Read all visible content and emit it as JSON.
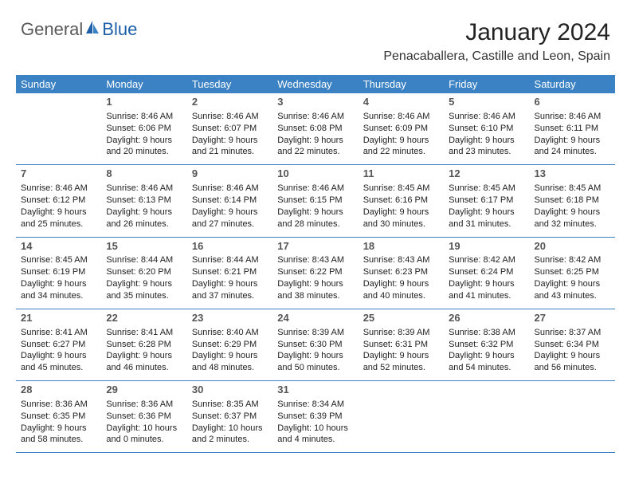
{
  "logo": {
    "general": "General",
    "blue": "Blue"
  },
  "title": "January 2024",
  "location": "Penacaballera, Castille and Leon, Spain",
  "colors": {
    "header_bg": "#3b82c4",
    "header_fg": "#ffffff",
    "row_border": "#3b82c4",
    "daynum": "#555555",
    "text": "#222222",
    "logo_gray": "#5a5a5a",
    "logo_blue": "#1e5fa8"
  },
  "weekdays": [
    "Sunday",
    "Monday",
    "Tuesday",
    "Wednesday",
    "Thursday",
    "Friday",
    "Saturday"
  ],
  "weeks": [
    [
      {
        "day": "",
        "lines": []
      },
      {
        "day": "1",
        "lines": [
          "Sunrise: 8:46 AM",
          "Sunset: 6:06 PM",
          "Daylight: 9 hours and 20 minutes."
        ]
      },
      {
        "day": "2",
        "lines": [
          "Sunrise: 8:46 AM",
          "Sunset: 6:07 PM",
          "Daylight: 9 hours and 21 minutes."
        ]
      },
      {
        "day": "3",
        "lines": [
          "Sunrise: 8:46 AM",
          "Sunset: 6:08 PM",
          "Daylight: 9 hours and 22 minutes."
        ]
      },
      {
        "day": "4",
        "lines": [
          "Sunrise: 8:46 AM",
          "Sunset: 6:09 PM",
          "Daylight: 9 hours and 22 minutes."
        ]
      },
      {
        "day": "5",
        "lines": [
          "Sunrise: 8:46 AM",
          "Sunset: 6:10 PM",
          "Daylight: 9 hours and 23 minutes."
        ]
      },
      {
        "day": "6",
        "lines": [
          "Sunrise: 8:46 AM",
          "Sunset: 6:11 PM",
          "Daylight: 9 hours and 24 minutes."
        ]
      }
    ],
    [
      {
        "day": "7",
        "lines": [
          "Sunrise: 8:46 AM",
          "Sunset: 6:12 PM",
          "Daylight: 9 hours and 25 minutes."
        ]
      },
      {
        "day": "8",
        "lines": [
          "Sunrise: 8:46 AM",
          "Sunset: 6:13 PM",
          "Daylight: 9 hours and 26 minutes."
        ]
      },
      {
        "day": "9",
        "lines": [
          "Sunrise: 8:46 AM",
          "Sunset: 6:14 PM",
          "Daylight: 9 hours and 27 minutes."
        ]
      },
      {
        "day": "10",
        "lines": [
          "Sunrise: 8:46 AM",
          "Sunset: 6:15 PM",
          "Daylight: 9 hours and 28 minutes."
        ]
      },
      {
        "day": "11",
        "lines": [
          "Sunrise: 8:45 AM",
          "Sunset: 6:16 PM",
          "Daylight: 9 hours and 30 minutes."
        ]
      },
      {
        "day": "12",
        "lines": [
          "Sunrise: 8:45 AM",
          "Sunset: 6:17 PM",
          "Daylight: 9 hours and 31 minutes."
        ]
      },
      {
        "day": "13",
        "lines": [
          "Sunrise: 8:45 AM",
          "Sunset: 6:18 PM",
          "Daylight: 9 hours and 32 minutes."
        ]
      }
    ],
    [
      {
        "day": "14",
        "lines": [
          "Sunrise: 8:45 AM",
          "Sunset: 6:19 PM",
          "Daylight: 9 hours and 34 minutes."
        ]
      },
      {
        "day": "15",
        "lines": [
          "Sunrise: 8:44 AM",
          "Sunset: 6:20 PM",
          "Daylight: 9 hours and 35 minutes."
        ]
      },
      {
        "day": "16",
        "lines": [
          "Sunrise: 8:44 AM",
          "Sunset: 6:21 PM",
          "Daylight: 9 hours and 37 minutes."
        ]
      },
      {
        "day": "17",
        "lines": [
          "Sunrise: 8:43 AM",
          "Sunset: 6:22 PM",
          "Daylight: 9 hours and 38 minutes."
        ]
      },
      {
        "day": "18",
        "lines": [
          "Sunrise: 8:43 AM",
          "Sunset: 6:23 PM",
          "Daylight: 9 hours and 40 minutes."
        ]
      },
      {
        "day": "19",
        "lines": [
          "Sunrise: 8:42 AM",
          "Sunset: 6:24 PM",
          "Daylight: 9 hours and 41 minutes."
        ]
      },
      {
        "day": "20",
        "lines": [
          "Sunrise: 8:42 AM",
          "Sunset: 6:25 PM",
          "Daylight: 9 hours and 43 minutes."
        ]
      }
    ],
    [
      {
        "day": "21",
        "lines": [
          "Sunrise: 8:41 AM",
          "Sunset: 6:27 PM",
          "Daylight: 9 hours and 45 minutes."
        ]
      },
      {
        "day": "22",
        "lines": [
          "Sunrise: 8:41 AM",
          "Sunset: 6:28 PM",
          "Daylight: 9 hours and 46 minutes."
        ]
      },
      {
        "day": "23",
        "lines": [
          "Sunrise: 8:40 AM",
          "Sunset: 6:29 PM",
          "Daylight: 9 hours and 48 minutes."
        ]
      },
      {
        "day": "24",
        "lines": [
          "Sunrise: 8:39 AM",
          "Sunset: 6:30 PM",
          "Daylight: 9 hours and 50 minutes."
        ]
      },
      {
        "day": "25",
        "lines": [
          "Sunrise: 8:39 AM",
          "Sunset: 6:31 PM",
          "Daylight: 9 hours and 52 minutes."
        ]
      },
      {
        "day": "26",
        "lines": [
          "Sunrise: 8:38 AM",
          "Sunset: 6:32 PM",
          "Daylight: 9 hours and 54 minutes."
        ]
      },
      {
        "day": "27",
        "lines": [
          "Sunrise: 8:37 AM",
          "Sunset: 6:34 PM",
          "Daylight: 9 hours and 56 minutes."
        ]
      }
    ],
    [
      {
        "day": "28",
        "lines": [
          "Sunrise: 8:36 AM",
          "Sunset: 6:35 PM",
          "Daylight: 9 hours and 58 minutes."
        ]
      },
      {
        "day": "29",
        "lines": [
          "Sunrise: 8:36 AM",
          "Sunset: 6:36 PM",
          "Daylight: 10 hours and 0 minutes."
        ]
      },
      {
        "day": "30",
        "lines": [
          "Sunrise: 8:35 AM",
          "Sunset: 6:37 PM",
          "Daylight: 10 hours and 2 minutes."
        ]
      },
      {
        "day": "31",
        "lines": [
          "Sunrise: 8:34 AM",
          "Sunset: 6:39 PM",
          "Daylight: 10 hours and 4 minutes."
        ]
      },
      {
        "day": "",
        "lines": []
      },
      {
        "day": "",
        "lines": []
      },
      {
        "day": "",
        "lines": []
      }
    ]
  ]
}
